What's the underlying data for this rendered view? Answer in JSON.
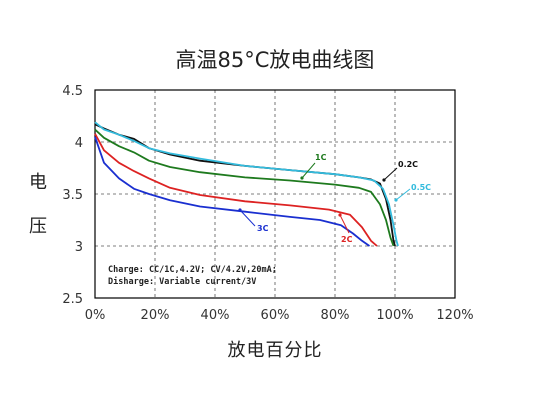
{
  "chart_data": {
    "type": "line",
    "title": "高温85°C放电曲线图",
    "xlabel": "放电百分比",
    "ylabel_chars": [
      "电",
      "压"
    ],
    "xlim": [
      0,
      120
    ],
    "ylim": [
      2.5,
      4.5
    ],
    "x_ticks": [
      0,
      20,
      40,
      60,
      80,
      100,
      120
    ],
    "x_tick_labels": [
      "0%",
      "20%",
      "40%",
      "60%",
      "80%",
      "100%",
      "120%"
    ],
    "y_ticks": [
      2.5,
      3,
      3.5,
      4,
      4.5
    ],
    "y_tick_labels": [
      "2.5",
      "3",
      "3.5",
      "4",
      "4.5"
    ],
    "grid": true,
    "series": [
      {
        "name": "0.2C",
        "color": "#111111",
        "x": [
          0,
          3,
          8,
          13,
          18,
          25,
          35,
          50,
          65,
          80,
          88,
          92,
          95,
          97,
          98.5,
          99.5,
          100
        ],
        "y": [
          4.17,
          4.13,
          4.07,
          4.03,
          3.94,
          3.88,
          3.82,
          3.77,
          3.73,
          3.69,
          3.66,
          3.64,
          3.6,
          3.45,
          3.25,
          3.05,
          3.0
        ]
      },
      {
        "name": "0.5C",
        "color": "#33bbdd",
        "x": [
          0,
          3,
          8,
          13,
          18,
          25,
          35,
          50,
          65,
          80,
          88,
          93,
          96,
          98,
          99.5,
          100.5,
          101
        ],
        "y": [
          4.19,
          4.12,
          4.07,
          4.01,
          3.94,
          3.89,
          3.84,
          3.77,
          3.73,
          3.69,
          3.66,
          3.63,
          3.55,
          3.4,
          3.2,
          3.05,
          3.0
        ]
      },
      {
        "name": "1C",
        "color": "#1e7a1e",
        "x": [
          0,
          3,
          8,
          13,
          18,
          25,
          35,
          50,
          65,
          80,
          88,
          92,
          95,
          97,
          98.5,
          99.5
        ],
        "y": [
          4.12,
          4.04,
          3.96,
          3.9,
          3.82,
          3.76,
          3.71,
          3.66,
          3.63,
          3.59,
          3.56,
          3.52,
          3.4,
          3.25,
          3.08,
          3.0
        ]
      },
      {
        "name": "2C",
        "color": "#dd2222",
        "x": [
          0,
          3,
          8,
          13,
          18,
          25,
          35,
          50,
          65,
          78,
          85,
          89,
          92,
          94
        ],
        "y": [
          4.08,
          3.92,
          3.8,
          3.72,
          3.65,
          3.56,
          3.49,
          3.43,
          3.39,
          3.35,
          3.3,
          3.18,
          3.05,
          3.0
        ]
      },
      {
        "name": "3C",
        "color": "#1a2fd0",
        "x": [
          0,
          3,
          8,
          13,
          18,
          25,
          35,
          50,
          65,
          75,
          82,
          86,
          89,
          91.5
        ],
        "y": [
          4.05,
          3.8,
          3.65,
          3.55,
          3.5,
          3.44,
          3.38,
          3.33,
          3.28,
          3.25,
          3.2,
          3.12,
          3.05,
          3.0
        ]
      }
    ],
    "annotations": [
      {
        "text": "1C",
        "color": "#1e7a1e"
      },
      {
        "text": "0.2C",
        "color": "#111111"
      },
      {
        "text": "0.5C",
        "color": "#33bbdd"
      },
      {
        "text": "2C",
        "color": "#dd2222"
      },
      {
        "text": "3C",
        "color": "#1a2fd0"
      }
    ],
    "notes": [
      "Charge:  CC/1C,4.2V;  CV/4.2V,20mA;",
      "Disharge:  Variable current/3V"
    ]
  }
}
